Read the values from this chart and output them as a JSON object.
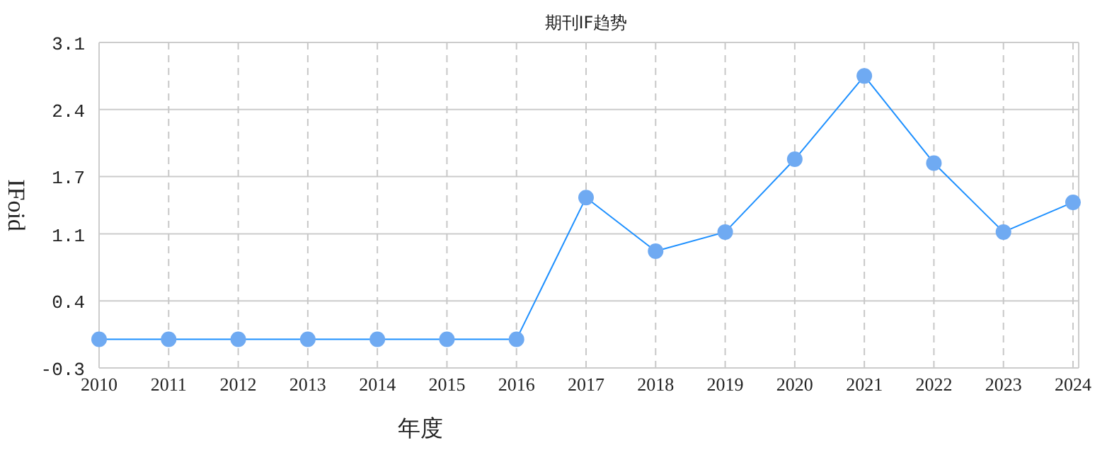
{
  "chart_data": {
    "type": "line",
    "title": "期刊IF趋势",
    "xlabel": "年度",
    "ylabel": "IFoid",
    "categories": [
      "2010",
      "2011",
      "2012",
      "2013",
      "2014",
      "2015",
      "2016",
      "2017",
      "2018",
      "2019",
      "2020",
      "2021",
      "2022",
      "2023",
      "2024"
    ],
    "series": [
      {
        "color": "#1e90ff",
        "values": [
          0,
          0,
          0,
          0,
          0,
          0,
          0,
          1.48,
          0.92,
          1.12,
          1.88,
          2.75,
          1.84,
          1.12,
          1.43
        ]
      }
    ],
    "ylim": [
      -0.3,
      3.1
    ],
    "yticks": [
      -0.3,
      0.4,
      1.1,
      1.7,
      2.4,
      3.1
    ],
    "grid": true,
    "marker": "circle",
    "line_style": "solid"
  }
}
